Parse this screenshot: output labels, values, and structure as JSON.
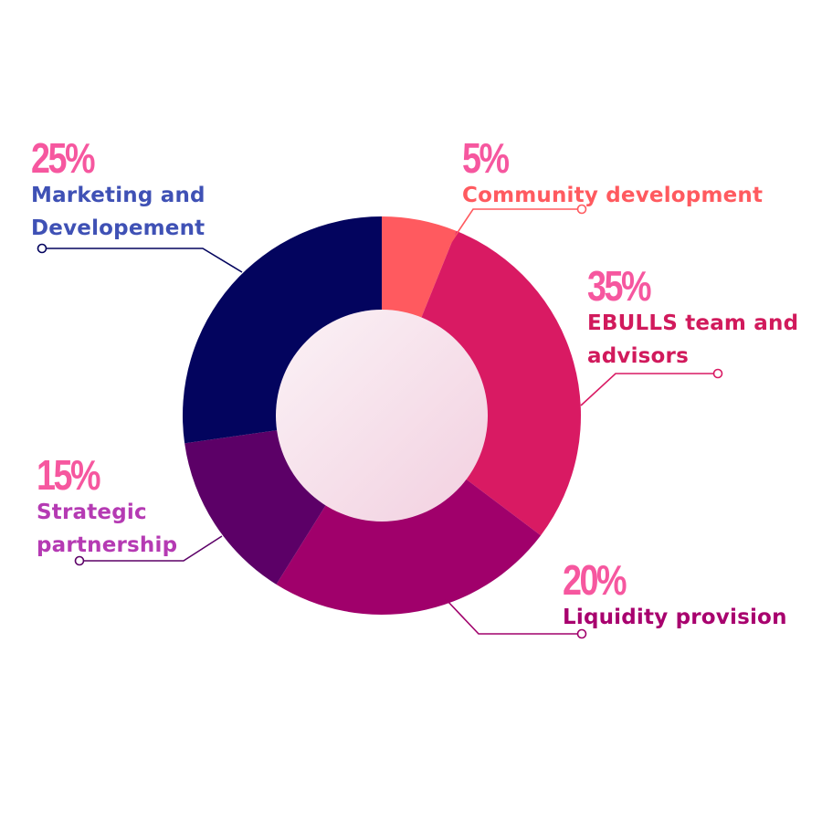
{
  "colors": {
    "pct_text": "#F6579F",
    "inner_gradient": [
      "#FBF2F6",
      "#F2D0E0"
    ],
    "marketing": "#03045E",
    "community": "#FF5A5F",
    "ebulls": "#D91A63",
    "liquidity": "#A0006B",
    "strategic": "#5C0067",
    "marketing_text": "#3F51B5",
    "community_text": "#FF5A5F",
    "ebulls_text": "#D11A5C",
    "liquidity_text": "#A8006E",
    "strategic_text": "#B53AB3"
  },
  "chart_data": {
    "type": "pie",
    "variant": "donut",
    "slices": [
      {
        "key": "community",
        "pct_text": "5%",
        "label_lines": [
          "Community development"
        ],
        "value": 5
      },
      {
        "key": "ebulls",
        "pct_text": "35%",
        "label_lines": [
          "EBULLS team and",
          "advisors"
        ],
        "value": 35
      },
      {
        "key": "liquidity",
        "pct_text": "20%",
        "label_lines": [
          "Liquidity provision"
        ],
        "value": 20
      },
      {
        "key": "strategic",
        "pct_text": "15%",
        "label_lines": [
          "Strategic",
          "partnership"
        ],
        "value": 15
      },
      {
        "key": "marketing",
        "pct_text": "25%",
        "label_lines": [
          "Marketing and",
          "Developement"
        ],
        "value": 25
      }
    ]
  }
}
